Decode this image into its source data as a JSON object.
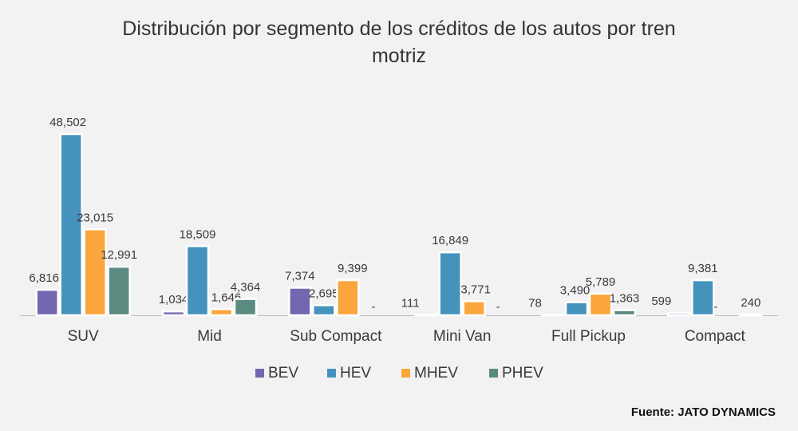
{
  "chart_data": {
    "type": "bar",
    "title_lines": [
      "Distribución por segmento de los créditos de los autos por tren",
      "motriz"
    ],
    "categories": [
      "SUV",
      "Mid",
      "Sub Compact",
      "Mini Van",
      "Full Pickup",
      "Compact"
    ],
    "series": [
      {
        "name": "BEV",
        "color": "#7566b0",
        "values": [
          6816,
          1034,
          7374,
          111,
          78,
          599
        ],
        "labels": [
          "6,816",
          "1,034",
          "7,374",
          "111",
          "78",
          "599"
        ]
      },
      {
        "name": "HEV",
        "color": "#4593bd",
        "values": [
          48502,
          18509,
          2695,
          16849,
          3490,
          9381
        ],
        "labels": [
          "48,502",
          "18,509",
          "2,695",
          "16,849",
          "3,490",
          "9,381"
        ]
      },
      {
        "name": "MHEV",
        "color": "#fba63c",
        "values": [
          23015,
          1646,
          9399,
          3771,
          5789,
          0
        ],
        "labels": [
          "23,015",
          "1,646",
          "9,399",
          "3,771",
          "5,789",
          "-"
        ]
      },
      {
        "name": "PHEV",
        "color": "#5b8a80",
        "values": [
          12991,
          4364,
          0,
          0,
          1363,
          240
        ],
        "labels": [
          "12,991",
          "4,364",
          "-",
          "-",
          "1,363",
          "240"
        ]
      }
    ],
    "ylim": [
      0,
      50000
    ],
    "grid": false,
    "legend_position": "bottom",
    "source": "Fuente: JATO DYNAMICS"
  }
}
